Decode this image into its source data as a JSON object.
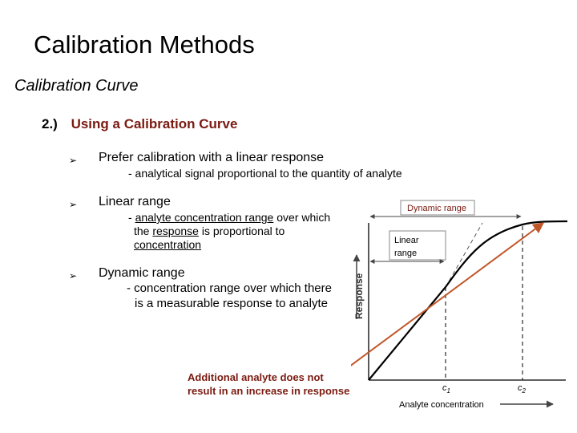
{
  "slide": {
    "title": "Calibration Methods",
    "subtitle": "Calibration Curve",
    "section_number": "2.)",
    "section_title": "Using a Calibration Curve",
    "bullets": [
      {
        "text": "Prefer calibration with a linear response",
        "sub": "- analytical signal proportional to the quantity of analyte"
      },
      {
        "text": "Linear range",
        "sub_parts": {
          "dash": "- ",
          "u1": "analyte concentration range",
          "t1": " over which",
          "t2": "the ",
          "u2": "response",
          "t3": " is proportional to",
          "u3": "concentration"
        }
      },
      {
        "text": "Dynamic range",
        "sub_line1": "- concentration range over which there",
        "sub_line2": "is a measurable response to analyte"
      }
    ],
    "note_line1": "Additional analyte does not",
    "note_line2": "result in an increase in response"
  },
  "figure": {
    "dynamic_range_label": "Dynamic range",
    "linear_label_1": "Linear",
    "linear_label_2": "range",
    "ylabel": "Response",
    "xlabel": "Analyte concentration",
    "c1": "c",
    "c1_sub": "1",
    "c2": "c",
    "c2_sub": "2"
  },
  "colors": {
    "accent": "#7a1a10",
    "arrow": "#c0572a",
    "box_border": "#888888"
  }
}
